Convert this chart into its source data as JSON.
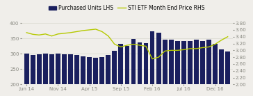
{
  "bar_values": [
    300,
    295,
    298,
    300,
    298,
    300,
    298,
    298,
    295,
    292,
    290,
    287,
    290,
    295,
    310,
    333,
    325,
    348,
    337,
    335,
    372,
    368,
    345,
    345,
    342,
    342,
    342,
    345,
    342,
    345,
    332,
    315,
    308
  ],
  "line_values": [
    3.52,
    3.47,
    3.45,
    3.48,
    3.42,
    3.48,
    3.5,
    3.52,
    3.55,
    3.58,
    3.6,
    3.62,
    3.55,
    3.42,
    3.18,
    3.1,
    3.15,
    3.18,
    3.15,
    3.12,
    2.75,
    2.8,
    2.98,
    3.0,
    3.0,
    3.02,
    3.05,
    3.05,
    3.08,
    3.1,
    3.18,
    3.3,
    3.4
  ],
  "bar_color": "#1a1f5e",
  "line_color": "#b5c900",
  "background_color": "#f0eeea",
  "grid_color": "#d8d8d0",
  "tick_color": "#888880",
  "spine_color": "#c8c8c0",
  "ylim_left": [
    200,
    400
  ],
  "ylim_right": [
    2.0,
    3.8
  ],
  "yticks_left": [
    200,
    250,
    300,
    350,
    400
  ],
  "yticks_right": [
    2.0,
    2.2,
    2.4,
    2.6,
    2.8,
    3.0,
    3.2,
    3.4,
    3.6,
    3.8
  ],
  "xtick_labels": [
    "Jun 14",
    "Nov 14",
    "Apr 15",
    "Sep 15",
    "Feb 16",
    "Jul 16",
    "Dec 16"
  ],
  "xtick_positions": [
    0,
    5,
    10,
    15,
    20,
    25,
    30
  ],
  "legend_bar_label": "Purchased Units LHS",
  "legend_line_label": "STI ETF Month End Price RHS",
  "tick_fontsize": 5.0,
  "legend_fontsize": 5.5
}
